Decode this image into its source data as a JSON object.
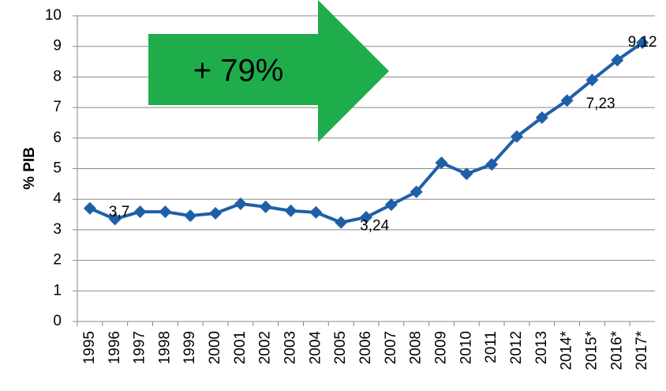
{
  "chart_data": {
    "type": "line",
    "annotation": "+ 79%",
    "y_label": "% PIB",
    "categories": [
      "1995",
      "1996",
      "1997",
      "1998",
      "1999",
      "2000",
      "2001",
      "2002",
      "2003",
      "2004",
      "2005",
      "2006",
      "2007",
      "2008",
      "2009",
      "2010",
      "2011",
      "2012",
      "2013",
      "2014*",
      "2015*",
      "2016*",
      "2017*"
    ],
    "series": [
      {
        "color": "#1f5fa8",
        "values": [
          3.7,
          3.35,
          3.59,
          3.59,
          3.46,
          3.54,
          3.85,
          3.75,
          3.62,
          3.57,
          3.24,
          3.41,
          3.82,
          4.24,
          5.19,
          4.83,
          5.14,
          6.05,
          6.67,
          7.23,
          7.9,
          8.55,
          9.12
        ],
        "value_labels": [
          "3,7",
          null,
          null,
          null,
          null,
          null,
          null,
          null,
          null,
          null,
          "3,24",
          null,
          null,
          null,
          null,
          null,
          null,
          null,
          null,
          "7,23",
          null,
          null,
          "9,12"
        ]
      }
    ],
    "ylim": [
      0,
      10
    ],
    "yticks": [
      0,
      1,
      2,
      3,
      4,
      5,
      6,
      7,
      8,
      9,
      10
    ],
    "grid": true,
    "annotation_color": "#1fad4c"
  }
}
